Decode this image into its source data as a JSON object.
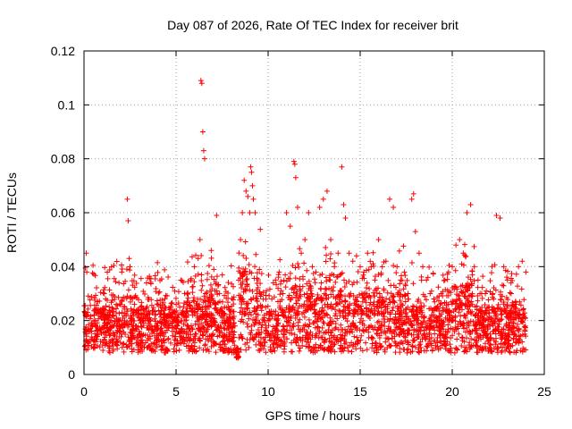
{
  "chart_data": {
    "type": "scatter",
    "title": "Day 087 of 2026, Rate Of TEC Index for receiver brit",
    "xlabel": "GPS time / hours",
    "ylabel": "ROTI / TECUs",
    "xlim": [
      0,
      25
    ],
    "ylim": [
      0,
      0.12
    ],
    "xticks": [
      0,
      5,
      10,
      15,
      20,
      25
    ],
    "xtick_labels": [
      "0",
      "5",
      "10",
      "15",
      "20",
      "25"
    ],
    "yticks": [
      0,
      0.02,
      0.04,
      0.06,
      0.08,
      0.1,
      0.12
    ],
    "ytick_labels": [
      "0",
      "0.02",
      "0.04",
      "0.06",
      "0.08",
      "0.1",
      "0.12"
    ],
    "grid": true,
    "marker": "plus",
    "color": "#ff0000",
    "series": [
      {
        "x": [
          0.1,
          0.12,
          0.15,
          0.2,
          0.3,
          0.45,
          0.6,
          0.75,
          0.9,
          1.1,
          1.25,
          1.4,
          1.6,
          1.75,
          1.9,
          2.05,
          2.2,
          2.35,
          2.4,
          2.45,
          2.5,
          2.6,
          2.8,
          3.0,
          3.2,
          3.4,
          3.6,
          3.8,
          4.0,
          4.2,
          4.4,
          4.6,
          4.8,
          5.0,
          5.2,
          5.4,
          5.6,
          5.8,
          6.0,
          6.2,
          6.3,
          6.35,
          6.4,
          6.45,
          6.5,
          6.55,
          6.6,
          6.8,
          7.0,
          7.2,
          7.4,
          7.6,
          7.8,
          8.0,
          8.2,
          8.4,
          8.5,
          8.6,
          8.7,
          8.8,
          8.9,
          9.0,
          9.05,
          9.1,
          9.15,
          9.2,
          9.3,
          9.4,
          9.6,
          9.8,
          10.0,
          10.2,
          10.4,
          10.6,
          10.8,
          11.0,
          11.2,
          11.4,
          11.45,
          11.5,
          11.6,
          11.8,
          12.0,
          12.2,
          12.4,
          12.6,
          12.8,
          13.0,
          13.2,
          13.4,
          13.6,
          13.8,
          14.0,
          14.1,
          14.2,
          14.4,
          14.6,
          14.8,
          15.0,
          15.2,
          15.4,
          15.6,
          15.8,
          16.0,
          16.2,
          16.4,
          16.6,
          16.8,
          17.0,
          17.2,
          17.4,
          17.6,
          17.8,
          17.9,
          18.0,
          18.2,
          18.4,
          18.6,
          18.8,
          19.0,
          19.2,
          19.4,
          19.6,
          19.8,
          20.0,
          20.2,
          20.4,
          20.6,
          20.8,
          21.0,
          21.2,
          21.4,
          21.6,
          21.8,
          22.0,
          22.2,
          22.4,
          22.6,
          22.8,
          23.0,
          23.2,
          23.4,
          23.6,
          23.8,
          24.0
        ],
        "y": [
          0.015,
          0.045,
          0.038,
          0.022,
          0.016,
          0.018,
          0.02,
          0.017,
          0.024,
          0.03,
          0.019,
          0.022,
          0.018,
          0.026,
          0.034,
          0.038,
          0.025,
          0.065,
          0.057,
          0.043,
          0.04,
          0.02,
          0.018,
          0.016,
          0.02,
          0.022,
          0.018,
          0.016,
          0.017,
          0.019,
          0.02,
          0.022,
          0.018,
          0.02,
          0.025,
          0.022,
          0.03,
          0.035,
          0.04,
          0.043,
          0.05,
          0.109,
          0.108,
          0.09,
          0.083,
          0.08,
          0.03,
          0.025,
          0.022,
          0.059,
          0.024,
          0.02,
          0.018,
          0.016,
          0.018,
          0.035,
          0.05,
          0.06,
          0.072,
          0.068,
          0.066,
          0.06,
          0.077,
          0.075,
          0.07,
          0.065,
          0.06,
          0.03,
          0.025,
          0.022,
          0.02,
          0.028,
          0.035,
          0.038,
          0.03,
          0.06,
          0.055,
          0.079,
          0.078,
          0.073,
          0.062,
          0.045,
          0.05,
          0.06,
          0.04,
          0.038,
          0.062,
          0.065,
          0.068,
          0.05,
          0.04,
          0.045,
          0.077,
          0.063,
          0.058,
          0.045,
          0.042,
          0.044,
          0.04,
          0.038,
          0.045,
          0.04,
          0.035,
          0.05,
          0.04,
          0.042,
          0.065,
          0.062,
          0.04,
          0.035,
          0.038,
          0.03,
          0.065,
          0.067,
          0.053,
          0.045,
          0.04,
          0.035,
          0.03,
          0.028,
          0.025,
          0.03,
          0.035,
          0.038,
          0.04,
          0.048,
          0.05,
          0.045,
          0.06,
          0.063,
          0.04,
          0.035,
          0.03,
          0.03,
          0.025,
          0.03,
          0.059,
          0.058,
          0.04,
          0.035,
          0.03,
          0.025,
          0.04,
          0.042,
          0.038
        ]
      }
    ]
  }
}
